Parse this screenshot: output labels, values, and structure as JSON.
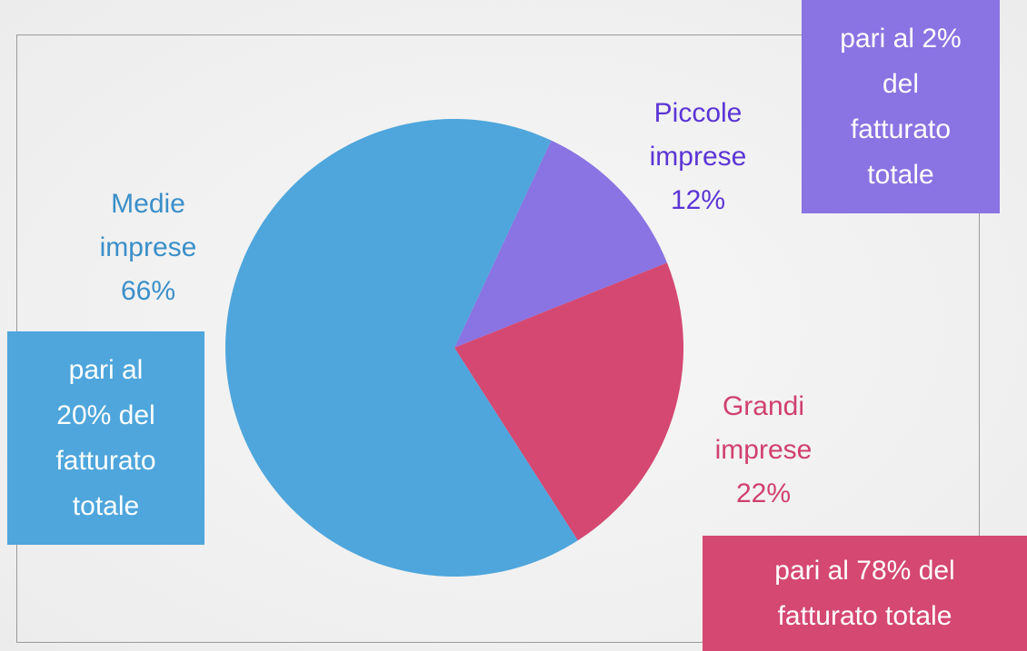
{
  "chart_data": {
    "type": "pie",
    "categories": [
      "Piccole imprese",
      "Grandi imprese",
      "Medie imprese"
    ],
    "values": [
      12,
      22,
      66
    ],
    "value_labels": [
      "12%",
      "22%",
      "66%"
    ],
    "colors": [
      "#8a73e2",
      "#d44872",
      "#4ea6dc"
    ],
    "label_colors": [
      "#5b35d5",
      "#d0406e",
      "#3a8fc9"
    ],
    "annotations": [
      "pari al 2% del fatturato totale",
      "pari al 78% del fatturato totale",
      "pari al 20% del fatturato totale"
    ]
  }
}
